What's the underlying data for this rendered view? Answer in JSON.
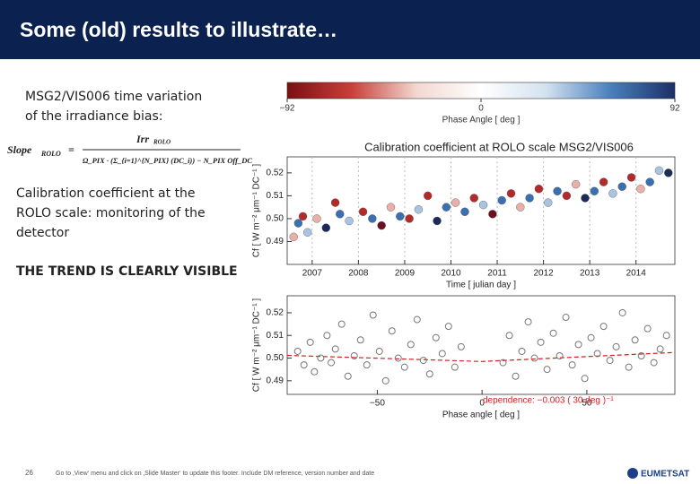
{
  "slide": {
    "title": "Some (old) results to illustrate…",
    "intro": [
      "MSG2/VIS006   time  variation",
      "of the irradiance bias:"
    ],
    "formula": {
      "lhs": "Slope",
      "lhs_sub": "ROLO",
      "num": "Irr",
      "num_sub": "ROLO",
      "den": "Ω_PIX · (Σ_{i=1}^{N_PIX} (DC_i)) − N_PIX Off_DC"
    },
    "body": [
      "Calibration coefficient at the",
      "ROLO scale: monitoring of the",
      "detector"
    ],
    "emphasis": "THE TREND IS CLEARLY VISIBLE",
    "page_number": "26",
    "footer": "Go to ‚View‘ menu and click on ‚Slide Master‘ to update this footer. Include DM reference, version number and date",
    "logo": "EUMETSAT"
  },
  "colorbar": {
    "label": "Phase Angle [ deg ]",
    "lim": [
      -92,
      92
    ],
    "colors": [
      "#7a0f12",
      "#c8403a",
      "#f2d8d0",
      "#ffffff",
      "#d4e2f0",
      "#4a80bd",
      "#1c2f66"
    ],
    "ticks": [
      {
        "value": -92,
        "label": "−92"
      },
      0,
      92
    ]
  },
  "chart_data": [
    {
      "type": "scatter",
      "title": "Calibration coefficient at ROLO scale MSG2/VIS006",
      "xlabel": "Time [ julian day ]",
      "ylabel": "Cf [ W m⁻² μm⁻¹ DC⁻¹ ]",
      "xlim": [
        2006.46,
        2014.84
      ],
      "ylim": [
        0.48,
        0.527
      ],
      "xticks": [
        2007,
        2008,
        2009,
        2010,
        2011,
        2012,
        2013,
        2014
      ],
      "yticks": [
        0.49,
        {
          "value": 0.5,
          "label": "0.50"
        },
        0.51,
        0.52
      ],
      "grid": true,
      "x": [
        2006.6,
        2006.7,
        2006.8,
        2006.9,
        2007.1,
        2007.3,
        2007.5,
        2007.6,
        2007.8,
        2008.1,
        2008.3,
        2008.5,
        2008.7,
        2008.9,
        2009.1,
        2009.3,
        2009.5,
        2009.7,
        2009.9,
        2010.1,
        2010.3,
        2010.5,
        2010.7,
        2010.9,
        2011.1,
        2011.3,
        2011.5,
        2011.7,
        2011.9,
        2012.1,
        2012.3,
        2012.5,
        2012.7,
        2012.9,
        2013.1,
        2013.3,
        2013.5,
        2013.7,
        2013.9,
        2014.1,
        2014.3,
        2014.5,
        2014.7
      ],
      "values": [
        0.492,
        0.498,
        0.501,
        0.494,
        0.5,
        0.496,
        0.507,
        0.502,
        0.499,
        0.503,
        0.5,
        0.497,
        0.505,
        0.501,
        0.5,
        0.504,
        0.51,
        0.499,
        0.505,
        0.507,
        0.503,
        0.509,
        0.506,
        0.502,
        0.508,
        0.511,
        0.505,
        0.509,
        0.513,
        0.507,
        0.512,
        0.51,
        0.515,
        0.509,
        0.512,
        0.516,
        0.511,
        0.514,
        0.518,
        0.513,
        0.516,
        0.521,
        0.52
      ],
      "colors": [
        "#e8b0a8",
        "#3a6fb0",
        "#b22a2a",
        "#a8c4e0",
        "#e8b0a8",
        "#1c2a5a",
        "#b22a2a",
        "#3a6fb0",
        "#a8c4e0",
        "#b22a2a",
        "#3a6fb0",
        "#6b1020",
        "#e8b0a8",
        "#3a6fb0",
        "#b22a2a",
        "#a8c4e0",
        "#b22a2a",
        "#1c2a5a",
        "#3a6fb0",
        "#e8b0a8",
        "#3a6fb0",
        "#b22a2a",
        "#a8c4e0",
        "#6b1020",
        "#3a6fb0",
        "#b22a2a",
        "#e8b0a8",
        "#3a6fb0",
        "#b22a2a",
        "#a8c4e0",
        "#3a6fb0",
        "#b22a2a",
        "#e8b0a8",
        "#1c2a5a",
        "#3a6fb0",
        "#b22a2a",
        "#a8c4e0",
        "#3a6fb0",
        "#b22a2a",
        "#e8b0a8",
        "#3a6fb0",
        "#a8c4e0",
        "#1c2a5a"
      ]
    },
    {
      "type": "scatter",
      "xlabel": "Phase angle [ deg ]",
      "ylabel": "Cf [ W m⁻² μm⁻¹ DC⁻¹ ]",
      "annotation": "dependence: −0.003 ( 30 deg )⁻¹",
      "xlim": [
        -93,
        92
      ],
      "ylim": [
        0.484,
        0.5275
      ],
      "xticks": [
        {
          "value": -50,
          "label": "−50"
        },
        0,
        50
      ],
      "yticks": [
        0.49,
        {
          "value": 0.5,
          "label": "0.50"
        },
        0.51,
        0.52
      ],
      "grid": false,
      "point_color": "#777777",
      "x": [
        -88,
        -85,
        -82,
        -80,
        -77,
        -74,
        -72,
        -70,
        -67,
        -64,
        -61,
        -58,
        -55,
        -52,
        -49,
        -46,
        -43,
        -40,
        -37,
        -34,
        -31,
        -28,
        -25,
        -22,
        -19,
        -16,
        -13,
        -10,
        10,
        13,
        16,
        19,
        22,
        25,
        28,
        31,
        34,
        37,
        40,
        43,
        46,
        49,
        52,
        55,
        58,
        61,
        64,
        67,
        70,
        73,
        76,
        79,
        82,
        85,
        88
      ],
      "values": [
        0.503,
        0.497,
        0.507,
        0.494,
        0.5,
        0.51,
        0.498,
        0.504,
        0.515,
        0.492,
        0.501,
        0.508,
        0.497,
        0.519,
        0.503,
        0.49,
        0.512,
        0.5,
        0.496,
        0.506,
        0.517,
        0.499,
        0.493,
        0.509,
        0.502,
        0.514,
        0.496,
        0.505,
        0.498,
        0.51,
        0.492,
        0.503,
        0.516,
        0.5,
        0.507,
        0.495,
        0.511,
        0.501,
        0.518,
        0.497,
        0.506,
        0.491,
        0.509,
        0.502,
        0.514,
        0.499,
        0.505,
        0.52,
        0.496,
        0.508,
        0.501,
        0.513,
        0.498,
        0.504,
        0.51
      ],
      "fit": {
        "color": "#d62020",
        "x": [
          -93,
          0,
          92
        ],
        "values": [
          0.5012,
          0.4985,
          0.5025
        ]
      }
    }
  ]
}
